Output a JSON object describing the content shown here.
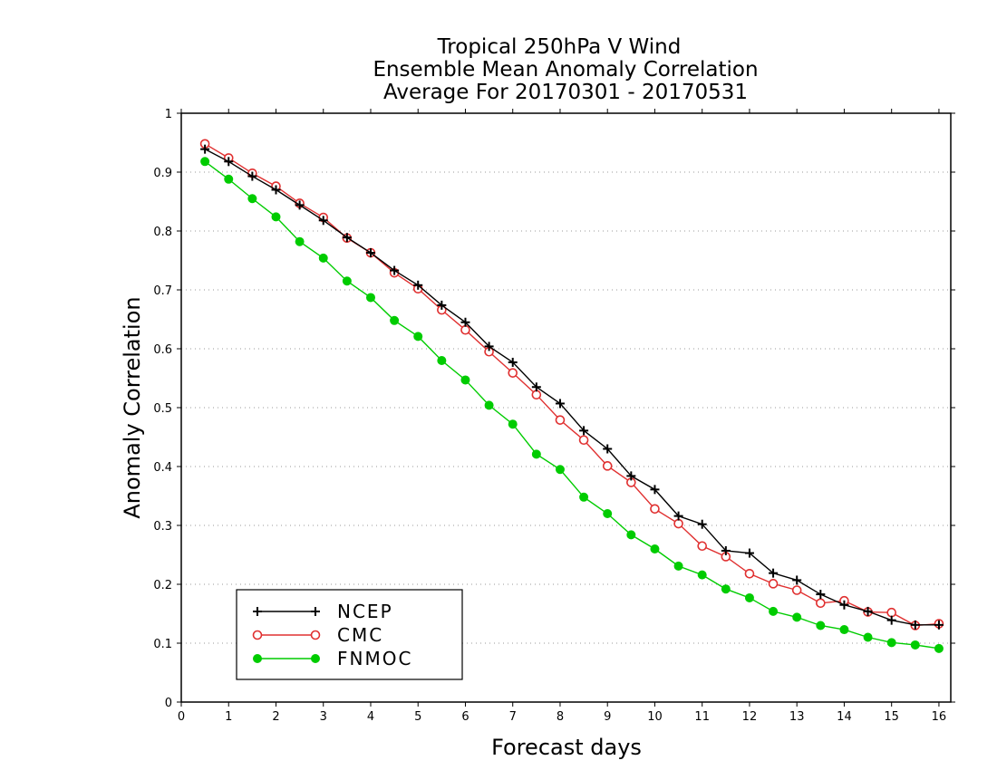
{
  "chart_data": {
    "type": "line",
    "title": [
      "Tropical 250hPa V Wind",
      "Ensemble Mean Anomaly Correlation",
      "Average For 20170301 - 20170531"
    ],
    "xlabel": "Forecast days",
    "ylabel": "Anomaly Correlation",
    "xlim": [
      0,
      16.25
    ],
    "ylim": [
      0,
      1
    ],
    "xticks": [
      "0",
      "1",
      "2",
      "3",
      "4",
      "5",
      "6",
      "7",
      "8",
      "9",
      "10",
      "11",
      "12",
      "13",
      "14",
      "15",
      "16"
    ],
    "yticks": [
      "0",
      "0.1",
      "0.2",
      "0.3",
      "0.4",
      "0.5",
      "0.6",
      "0.7",
      "0.8",
      "0.9",
      "1"
    ],
    "grid": "horizontal dotted",
    "legend_position": "bottom-left",
    "x": [
      0.5,
      1,
      1.5,
      2,
      2.5,
      3,
      3.5,
      4,
      4.5,
      5,
      5.5,
      6,
      6.5,
      7,
      7.5,
      8,
      8.5,
      9,
      9.5,
      10,
      10.5,
      11,
      11.5,
      12,
      12.5,
      13,
      13.5,
      14,
      14.5,
      15,
      15.5,
      16
    ],
    "series": [
      {
        "name": "NCEP",
        "color": "#000000",
        "marker": "plus",
        "values": [
          0.939,
          0.918,
          0.893,
          0.87,
          0.844,
          0.818,
          0.789,
          0.763,
          0.733,
          0.708,
          0.674,
          0.645,
          0.604,
          0.577,
          0.535,
          0.507,
          0.461,
          0.43,
          0.384,
          0.361,
          0.316,
          0.302,
          0.257,
          0.253,
          0.219,
          0.207,
          0.183,
          0.165,
          0.154,
          0.139,
          0.131,
          0.131
        ]
      },
      {
        "name": "CMC",
        "color": "#e03030",
        "marker": "open-circle",
        "values": [
          0.948,
          0.924,
          0.898,
          0.876,
          0.847,
          0.823,
          0.788,
          0.763,
          0.729,
          0.702,
          0.666,
          0.632,
          0.595,
          0.559,
          0.522,
          0.479,
          0.445,
          0.401,
          0.373,
          0.328,
          0.303,
          0.265,
          0.247,
          0.218,
          0.201,
          0.19,
          0.168,
          0.172,
          0.153,
          0.152,
          0.13,
          0.133
        ]
      },
      {
        "name": "FNMOC",
        "color": "#00cc00",
        "marker": "filled-circle",
        "values": [
          0.918,
          0.888,
          0.855,
          0.824,
          0.782,
          0.754,
          0.715,
          0.687,
          0.648,
          0.621,
          0.58,
          0.547,
          0.504,
          0.472,
          0.421,
          0.395,
          0.348,
          0.32,
          0.284,
          0.26,
          0.231,
          0.216,
          0.192,
          0.177,
          0.154,
          0.144,
          0.13,
          0.123,
          0.11,
          0.101,
          0.097,
          0.091
        ]
      }
    ]
  }
}
